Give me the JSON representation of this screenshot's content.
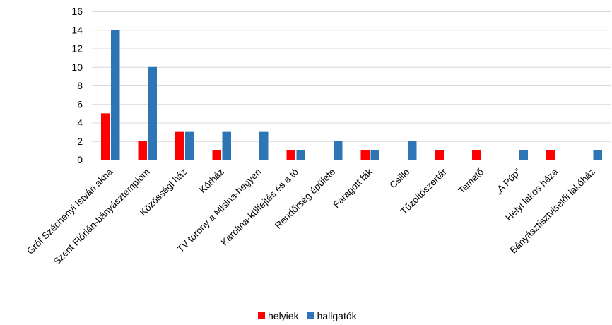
{
  "chart_data": {
    "type": "bar",
    "title": "",
    "xlabel": "",
    "ylabel": "",
    "ylim": [
      0,
      16
    ],
    "yticks": [
      0,
      2,
      4,
      6,
      8,
      10,
      12,
      14,
      16
    ],
    "grid": true,
    "legend_position": "bottom",
    "categories": [
      "Gróf Széchenyi István akna",
      "Szent Flórián-bányásztemplom",
      "Közösségi ház",
      "Kórház",
      "TV torony a Misina-hegyen",
      "Karolina-külfejtés és a tó",
      "Rendőrség épülete",
      "Faragott fák",
      "Csille",
      "Tűzoltószertár",
      "Temető",
      "„A Púp”",
      "Helyi lakos háza",
      "Bányásztisztviselői lakóház"
    ],
    "series": [
      {
        "name": "helyiek",
        "color": "#ff0000",
        "values": [
          5,
          2,
          3,
          1,
          0,
          1,
          0,
          1,
          0,
          1,
          1,
          0,
          1,
          0
        ]
      },
      {
        "name": "hallgatók",
        "color": "#2e75b6",
        "values": [
          14,
          10,
          3,
          3,
          3,
          1,
          2,
          1,
          2,
          0,
          0,
          1,
          0,
          1
        ]
      }
    ]
  }
}
